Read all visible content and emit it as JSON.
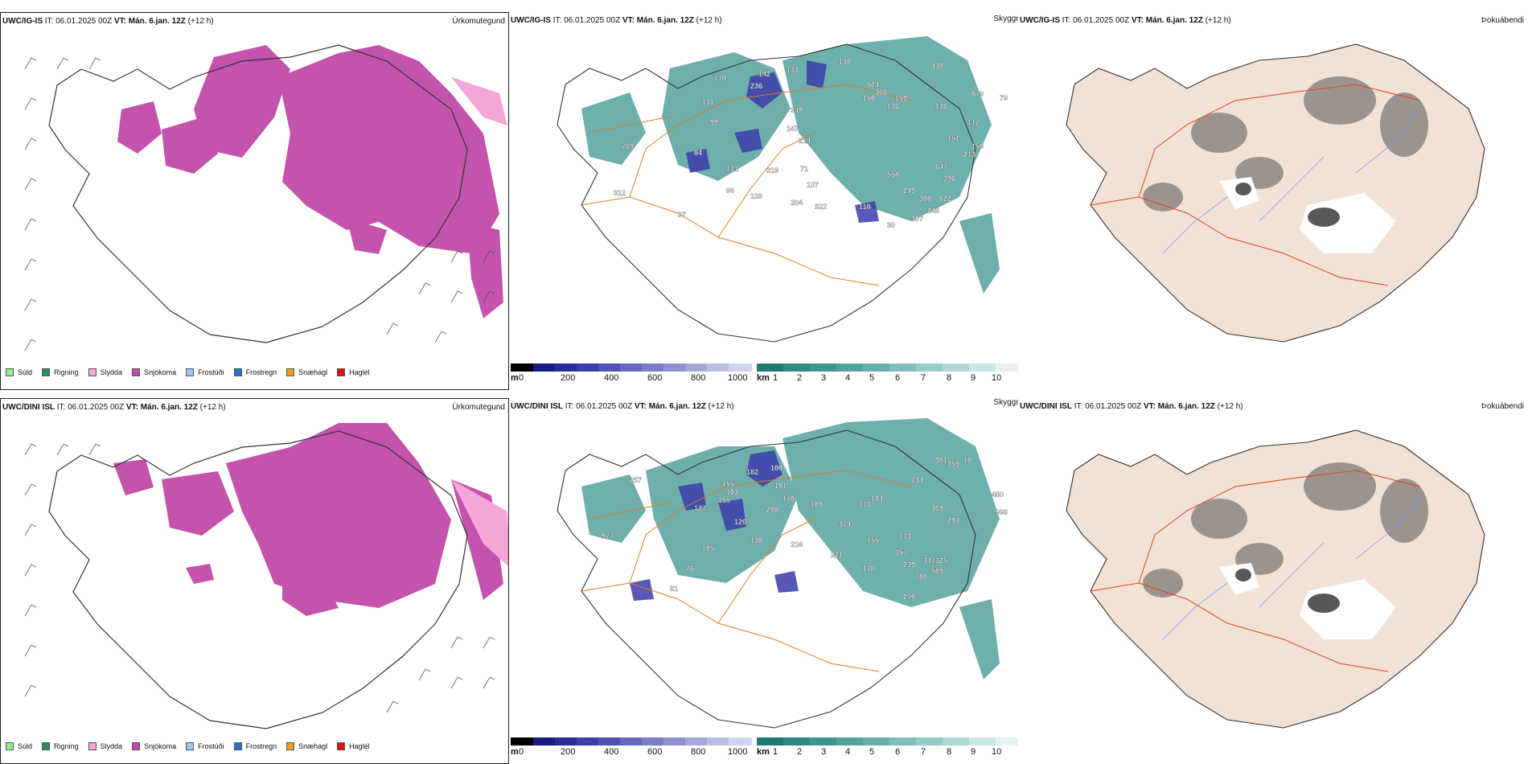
{
  "rows": [
    {
      "model": "UWC/IG-IS",
      "it_label": "IT:",
      "it": "06.01.2025 00Z",
      "vt_label": "VT:",
      "vt": "Mán. 6.jan. 12Z",
      "lead": "(+12 h)"
    },
    {
      "model": "UWC/DINI ISL",
      "it_label": "IT:",
      "it": "06.01.2025 00Z",
      "vt_label": "VT:",
      "vt": "Mán. 6.jan. 12Z",
      "lead": "(+12 h)"
    }
  ],
  "panel_types": {
    "precip": "Úrkomutegund",
    "ceiling": "Skyggni",
    "fog": "Þokuábendi"
  },
  "precip_legend": [
    {
      "label": "Súld",
      "color": "#90ee90"
    },
    {
      "label": "Rigning",
      "color": "#2e8b57"
    },
    {
      "label": "Slydda",
      "color": "#f4a6d6"
    },
    {
      "label": "Snjókoma",
      "color": "#c04aa8"
    },
    {
      "label": "Frostúði",
      "color": "#9cc7f2"
    },
    {
      "label": "Frostregn",
      "color": "#2f6fc4"
    },
    {
      "label": "Snæhagl",
      "color": "#f0a020"
    },
    {
      "label": "Haglél",
      "color": "#e01010"
    }
  ],
  "ceiling_scale": {
    "unit": "m",
    "ticks": [
      "0",
      "200",
      "400",
      "600",
      "800",
      "1000"
    ],
    "colors": [
      "#000000",
      "#1a1a80",
      "#2b2b9a",
      "#3c3caa",
      "#5050b5",
      "#6868c0",
      "#7c7cc8",
      "#9090d0",
      "#a6a6da",
      "#bcbce4",
      "#d2d2ee"
    ]
  },
  "visibility_scale": {
    "unit": "km",
    "ticks": [
      "1",
      "2",
      "3",
      "4",
      "5",
      "6",
      "7",
      "8",
      "9",
      "10"
    ],
    "colors": [
      "#1f7a74",
      "#2e8a84",
      "#3e9590",
      "#52a39d",
      "#67b0aa",
      "#7fbeb8",
      "#98ccc6",
      "#b1d9d4",
      "#cbe7e3",
      "#e4f3f1"
    ]
  },
  "fog_scale": {
    "min": "0",
    "max": "60"
  },
  "ceiling_labels_top": [
    "131",
    "118",
    "142",
    "133",
    "130",
    "136",
    "99",
    "340",
    "147",
    "214",
    "236",
    "84",
    "131",
    "319",
    "71",
    "97",
    "107",
    "129",
    "96",
    "204",
    "322",
    "118",
    "30",
    "769",
    "312",
    "558",
    "249",
    "300",
    "622",
    "307",
    "248",
    "396",
    "647",
    "213",
    "150",
    "151",
    "117",
    "879",
    "79",
    "159",
    "150",
    "366",
    "524",
    "136",
    "430"
  ],
  "ceiling_labels_bottom": [
    "257",
    "182",
    "100",
    "155",
    "103",
    "181",
    "170",
    "189",
    "208",
    "120",
    "105",
    "130",
    "216",
    "155",
    "118",
    "374",
    "221",
    "173",
    "357",
    "341",
    "325",
    "589",
    "780",
    "270",
    "239",
    "113",
    "104",
    "359",
    "981",
    "10",
    "480",
    "998",
    "134",
    "369",
    "294",
    "977",
    "127",
    "155",
    "76",
    "81"
  ]
}
